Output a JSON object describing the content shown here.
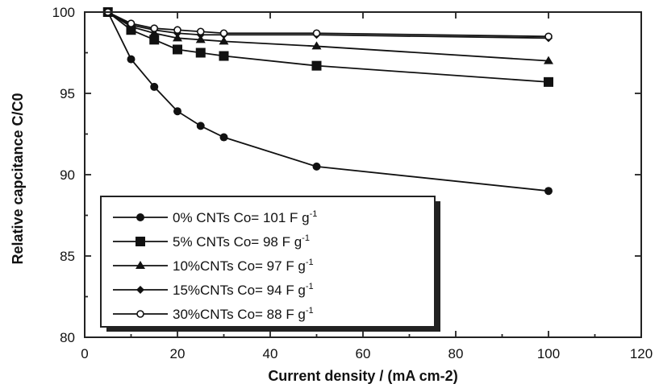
{
  "chart_data": {
    "type": "line",
    "xlabel": "Current density / (mA cm-2)",
    "ylabel": "Relative capcitance C/C0",
    "xlim": [
      0,
      120
    ],
    "ylim": [
      80,
      100
    ],
    "xticks": [
      "0",
      "20",
      "40",
      "60",
      "80",
      "100",
      "120"
    ],
    "yticks": [
      "80",
      "85",
      "90",
      "95",
      "100"
    ],
    "grid": false,
    "legend_position": "lower-left",
    "series": [
      {
        "name": "0% CNTs",
        "legend_label": "0% CNTs    Co= 101 F g-1",
        "marker": "filled-circle",
        "x": [
          5,
          10,
          15,
          20,
          25,
          30,
          50,
          100
        ],
        "y": [
          100,
          97.1,
          95.4,
          93.9,
          93.0,
          92.3,
          90.5,
          89.0
        ]
      },
      {
        "name": "5% CNTs",
        "legend_label": "5% CNTs    Co= 98 F g-1",
        "marker": "filled-square",
        "x": [
          5,
          10,
          15,
          20,
          25,
          30,
          50,
          100
        ],
        "y": [
          100,
          98.9,
          98.3,
          97.7,
          97.5,
          97.3,
          96.7,
          95.7
        ]
      },
      {
        "name": "10%CNTs",
        "legend_label": "10%CNTs  Co= 97 F g-1",
        "marker": "filled-triangle",
        "x": [
          5,
          10,
          15,
          20,
          25,
          30,
          50,
          100
        ],
        "y": [
          100,
          99.1,
          98.7,
          98.4,
          98.3,
          98.2,
          97.9,
          97.0
        ]
      },
      {
        "name": "15%CNTs",
        "legend_label": "15%CNTs  Co= 94 F g-1",
        "marker": "filled-diamond",
        "x": [
          5,
          10,
          15,
          20,
          25,
          30,
          50,
          100
        ],
        "y": [
          100,
          99.2,
          98.9,
          98.7,
          98.6,
          98.6,
          98.6,
          98.4
        ]
      },
      {
        "name": "30%CNTs",
        "legend_label": "30%CNTs  Co= 88 F g-1",
        "marker": "open-circle",
        "x": [
          5,
          10,
          15,
          20,
          25,
          30,
          50,
          100
        ],
        "y": [
          100,
          99.3,
          99.0,
          98.9,
          98.8,
          98.7,
          98.7,
          98.5
        ]
      }
    ]
  }
}
